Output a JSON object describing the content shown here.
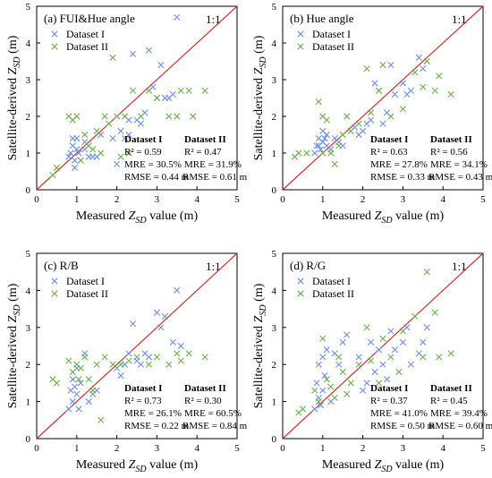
{
  "colors": {
    "dataset_1": "#6f8fe8",
    "dataset_2": "#6ab04c",
    "identity_line": "#d4302a",
    "frame": "#000000"
  },
  "chart_data": [
    {
      "type": "scatter",
      "title": "(a) FUI&Hue angle",
      "ratio_label": "1:1",
      "xlabel_prefix": "Measured ",
      "xlabel_sym": "Z",
      "xlabel_sub": "SD",
      "xlabel_suffix": " value (m)",
      "ylabel_prefix": "Satellite-derived ",
      "ylabel_sym": "Z",
      "ylabel_sub": "SD",
      "ylabel_suffix": " (m)",
      "xlim": [
        0,
        5
      ],
      "ylim": [
        0,
        5
      ],
      "xticks": [
        "0",
        "1",
        "2",
        "3",
        "4",
        "5"
      ],
      "yticks": [
        "0",
        "1",
        "2",
        "3",
        "4",
        "5"
      ],
      "legend": [
        "Dataset I",
        "Dataset II"
      ],
      "stats": [
        {
          "name": "Dataset I",
          "r2": "R² = 0.59",
          "mre": "MRE = 30.5%",
          "rmse": "RMSE = 0.44 m"
        },
        {
          "name": "Dataset II",
          "r2": "R² = 0.47",
          "mre": "MRE = 31.9%",
          "rmse": "RMSE = 0.61 m"
        }
      ],
      "series": [
        {
          "points": [
            [
              0.8,
              0.9
            ],
            [
              0.85,
              1.0
            ],
            [
              0.9,
              1.2
            ],
            [
              0.9,
              1.4
            ],
            [
              0.95,
              0.6
            ],
            [
              1.0,
              1.1
            ],
            [
              1.0,
              1.4
            ],
            [
              1.05,
              1.0
            ],
            [
              1.1,
              0.8
            ],
            [
              1.2,
              1.1
            ],
            [
              1.3,
              0.9
            ],
            [
              1.4,
              0.9
            ],
            [
              1.5,
              0.9
            ],
            [
              1.6,
              1.5
            ],
            [
              1.9,
              1.4
            ],
            [
              2.0,
              0.7
            ],
            [
              2.1,
              1.6
            ],
            [
              2.2,
              1.4
            ],
            [
              2.3,
              1.5
            ],
            [
              2.4,
              3.7
            ],
            [
              2.5,
              1.9
            ],
            [
              2.6,
              1.8
            ],
            [
              2.7,
              2.1
            ],
            [
              2.8,
              3.8
            ],
            [
              2.9,
              2.8
            ],
            [
              3.0,
              2.5
            ],
            [
              3.1,
              3.4
            ],
            [
              3.2,
              2.5
            ],
            [
              3.3,
              2.5
            ],
            [
              3.4,
              2.6
            ],
            [
              3.5,
              4.7
            ],
            [
              2.3,
              1.9
            ],
            [
              1.2,
              1.3
            ],
            [
              0.95,
              0.8
            ]
          ]
        },
        {
          "points": [
            [
              0.4,
              0.4
            ],
            [
              0.5,
              0.6
            ],
            [
              0.8,
              2.0
            ],
            [
              0.9,
              1.9
            ],
            [
              1.0,
              2.0
            ],
            [
              1.1,
              0.8
            ],
            [
              1.2,
              1.5
            ],
            [
              1.3,
              1.2
            ],
            [
              1.5,
              1.6
            ],
            [
              1.7,
              2.0
            ],
            [
              1.8,
              1.8
            ],
            [
              1.9,
              3.6
            ],
            [
              2.0,
              2.0
            ],
            [
              2.1,
              0.9
            ],
            [
              2.2,
              2.0
            ],
            [
              2.3,
              1.0
            ],
            [
              2.4,
              2.7
            ],
            [
              2.6,
              2.0
            ],
            [
              2.8,
              2.7
            ],
            [
              3.0,
              2.5
            ],
            [
              3.3,
              2.0
            ],
            [
              3.5,
              2.0
            ],
            [
              3.6,
              2.7
            ],
            [
              3.8,
              2.7
            ],
            [
              4.2,
              2.7
            ],
            [
              3.9,
              2.0
            ],
            [
              1.6,
              1.0
            ],
            [
              1.4,
              1.1
            ]
          ]
        }
      ]
    },
    {
      "type": "scatter",
      "title": "(b) Hue angle",
      "ratio_label": "1:1",
      "xlabel_prefix": "Measured ",
      "xlabel_sym": "Z",
      "xlabel_sub": "SD",
      "xlabel_suffix": " value (m)",
      "ylabel_prefix": "Satellite-derived ",
      "ylabel_sym": "Z",
      "ylabel_sub": "SD",
      "ylabel_suffix": " (m)",
      "xlim": [
        0,
        5
      ],
      "ylim": [
        0,
        5
      ],
      "xticks": [
        "0",
        "1",
        "2",
        "3",
        "4",
        "5"
      ],
      "yticks": [
        "0",
        "1",
        "2",
        "3",
        "4",
        "5"
      ],
      "legend": [
        "Dataset I",
        "Dataset II"
      ],
      "stats": [
        {
          "name": "Dataset I",
          "r2": "R² = 0.63",
          "mre": "MRE = 27.8%",
          "rmse": "RMSE = 0.33 m"
        },
        {
          "name": "Dataset II",
          "r2": "R² = 0.56",
          "mre": "MRE = 34.1%",
          "rmse": "RMSE = 0.43 m"
        }
      ],
      "series": [
        {
          "points": [
            [
              0.8,
              1.0
            ],
            [
              0.85,
              1.2
            ],
            [
              0.9,
              1.4
            ],
            [
              0.95,
              1.1
            ],
            [
              1.0,
              1.3
            ],
            [
              1.0,
              1.6
            ],
            [
              1.05,
              1.4
            ],
            [
              1.1,
              1.2
            ],
            [
              1.2,
              1.1
            ],
            [
              1.3,
              1.4
            ],
            [
              1.4,
              1.3
            ],
            [
              1.5,
              1.2
            ],
            [
              1.8,
              1.7
            ],
            [
              1.9,
              1.5
            ],
            [
              2.0,
              1.6
            ],
            [
              2.1,
              1.8
            ],
            [
              2.2,
              1.9
            ],
            [
              2.3,
              2.9
            ],
            [
              2.4,
              2.7
            ],
            [
              2.5,
              1.8
            ],
            [
              2.6,
              2.1
            ],
            [
              2.7,
              3.4
            ],
            [
              2.8,
              2.6
            ],
            [
              3.0,
              2.9
            ],
            [
              3.1,
              2.6
            ],
            [
              3.2,
              2.7
            ],
            [
              3.4,
              3.6
            ],
            [
              3.5,
              3.3
            ],
            [
              0.9,
              1.2
            ],
            [
              1.1,
              1.5
            ]
          ]
        },
        {
          "points": [
            [
              0.3,
              0.9
            ],
            [
              0.4,
              1.0
            ],
            [
              0.6,
              1.0
            ],
            [
              0.9,
              2.4
            ],
            [
              1.0,
              2.0
            ],
            [
              1.0,
              1.0
            ],
            [
              1.1,
              1.9
            ],
            [
              1.2,
              1.0
            ],
            [
              1.3,
              0.7
            ],
            [
              1.5,
              1.5
            ],
            [
              1.7,
              1.6
            ],
            [
              1.9,
              1.8
            ],
            [
              2.1,
              3.3
            ],
            [
              2.2,
              2.1
            ],
            [
              2.4,
              2.7
            ],
            [
              2.5,
              3.4
            ],
            [
              2.7,
              2.0
            ],
            [
              3.0,
              2.2
            ],
            [
              3.3,
              3.2
            ],
            [
              3.5,
              2.8
            ],
            [
              3.6,
              3.5
            ],
            [
              3.8,
              2.7
            ],
            [
              4.2,
              2.6
            ],
            [
              3.9,
              3.1
            ],
            [
              1.6,
              2.0
            ],
            [
              1.4,
              1.2
            ]
          ]
        }
      ]
    },
    {
      "type": "scatter",
      "title": "(c) R/B",
      "ratio_label": "1:1",
      "xlabel_prefix": "Measured ",
      "xlabel_sym": "Z",
      "xlabel_sub": "SD",
      "xlabel_suffix": " value (m)",
      "ylabel_prefix": "Satellite-derived ",
      "ylabel_sym": "Z",
      "ylabel_sub": "SD",
      "ylabel_suffix": " (m)",
      "xlim": [
        0,
        5
      ],
      "ylim": [
        0,
        5
      ],
      "xticks": [
        "0",
        "1",
        "2",
        "3",
        "4",
        "5"
      ],
      "yticks": [
        "0",
        "1",
        "2",
        "3",
        "4",
        "5"
      ],
      "legend": [
        "Dataset I",
        "Dataset II"
      ],
      "stats": [
        {
          "name": "Dataset I",
          "r2": "R² = 0.73",
          "mre": "MRE = 26.1%",
          "rmse": "RMSE = 0.22 m"
        },
        {
          "name": "Dataset II",
          "r2": "R² = 0.30",
          "mre": "MRE = 60.5%",
          "rmse": "RMSE = 0.84 m"
        }
      ],
      "series": [
        {
          "points": [
            [
              0.8,
              0.8
            ],
            [
              0.85,
              1.3
            ],
            [
              0.9,
              1.6
            ],
            [
              0.9,
              1.0
            ],
            [
              1.0,
              1.9
            ],
            [
              1.0,
              1.2
            ],
            [
              1.05,
              0.8
            ],
            [
              1.1,
              1.5
            ],
            [
              1.2,
              2.3
            ],
            [
              1.3,
              1.0
            ],
            [
              1.4,
              1.2
            ],
            [
              1.5,
              1.3
            ],
            [
              2.0,
              1.9
            ],
            [
              2.1,
              1.7
            ],
            [
              2.2,
              2.0
            ],
            [
              2.3,
              2.3
            ],
            [
              2.4,
              3.1
            ],
            [
              2.5,
              2.1
            ],
            [
              2.6,
              2.0
            ],
            [
              2.7,
              2.3
            ],
            [
              2.8,
              2.2
            ],
            [
              3.0,
              3.4
            ],
            [
              3.1,
              3.0
            ],
            [
              3.2,
              3.3
            ],
            [
              3.4,
              2.6
            ],
            [
              3.5,
              4.0
            ],
            [
              3.6,
              2.5
            ],
            [
              0.95,
              1.4
            ]
          ]
        },
        {
          "points": [
            [
              0.4,
              1.6
            ],
            [
              0.5,
              1.5
            ],
            [
              0.8,
              2.1
            ],
            [
              0.9,
              1.8
            ],
            [
              1.0,
              2.0
            ],
            [
              1.05,
              1.6
            ],
            [
              1.1,
              1.9
            ],
            [
              1.2,
              2.2
            ],
            [
              1.3,
              1.6
            ],
            [
              1.5,
              2.0
            ],
            [
              1.7,
              2.2
            ],
            [
              1.9,
              2.0
            ],
            [
              2.1,
              2.0
            ],
            [
              2.3,
              2.1
            ],
            [
              2.5,
              2.2
            ],
            [
              2.8,
              2.0
            ],
            [
              3.0,
              2.2
            ],
            [
              3.3,
              2.0
            ],
            [
              3.5,
              2.3
            ],
            [
              3.6,
              2.1
            ],
            [
              3.8,
              2.3
            ],
            [
              4.2,
              2.2
            ],
            [
              1.6,
              0.5
            ],
            [
              1.4,
              1.3
            ]
          ]
        }
      ]
    },
    {
      "type": "scatter",
      "title": "(d) R/G",
      "ratio_label": "1:1",
      "xlabel_prefix": "Measured ",
      "xlabel_sym": "Z",
      "xlabel_sub": "SD",
      "xlabel_suffix": " value (m)",
      "ylabel_prefix": "Satellite-derived ",
      "ylabel_sym": "Z",
      "ylabel_sub": "SD",
      "ylabel_suffix": " (m)",
      "xlim": [
        0,
        5
      ],
      "ylim": [
        0,
        5
      ],
      "xticks": [
        "0",
        "1",
        "2",
        "3",
        "4",
        "5"
      ],
      "yticks": [
        "0",
        "1",
        "2",
        "3",
        "4",
        "5"
      ],
      "legend": [
        "Dataset I",
        "Dataset II"
      ],
      "stats": [
        {
          "name": "Dataset I",
          "r2": "R² = 0.37",
          "mre": "MRE = 41.0%",
          "rmse": "RMSE = 0.50 m"
        },
        {
          "name": "Dataset II",
          "r2": "R² = 0.45",
          "mre": "MRE = 39.4%",
          "rmse": "RMSE = 0.60 m"
        }
      ],
      "series": [
        {
          "points": [
            [
              0.8,
              0.8
            ],
            [
              0.85,
              1.5
            ],
            [
              0.9,
              2.0
            ],
            [
              0.9,
              1.1
            ],
            [
              1.0,
              2.2
            ],
            [
              1.0,
              1.3
            ],
            [
              1.05,
              1.7
            ],
            [
              1.1,
              2.4
            ],
            [
              1.2,
              1.0
            ],
            [
              1.3,
              2.3
            ],
            [
              1.4,
              2.0
            ],
            [
              1.5,
              2.6
            ],
            [
              1.6,
              2.8
            ],
            [
              1.9,
              2.2
            ],
            [
              2.0,
              1.3
            ],
            [
              2.1,
              1.5
            ],
            [
              2.2,
              2.6
            ],
            [
              2.3,
              1.8
            ],
            [
              2.4,
              2.4
            ],
            [
              2.5,
              2.0
            ],
            [
              2.6,
              1.6
            ],
            [
              2.7,
              2.9
            ],
            [
              2.8,
              2.4
            ],
            [
              3.0,
              2.6
            ],
            [
              3.1,
              3.0
            ],
            [
              3.2,
              2.0
            ],
            [
              3.4,
              2.3
            ],
            [
              3.5,
              2.6
            ],
            [
              3.6,
              3.0
            ],
            [
              0.95,
              0.9
            ]
          ]
        },
        {
          "points": [
            [
              0.4,
              0.7
            ],
            [
              0.5,
              0.8
            ],
            [
              0.8,
              1.3
            ],
            [
              0.9,
              1.0
            ],
            [
              1.0,
              2.7
            ],
            [
              1.1,
              1.6
            ],
            [
              1.2,
              1.4
            ],
            [
              1.3,
              1.1
            ],
            [
              1.5,
              1.8
            ],
            [
              1.7,
              1.5
            ],
            [
              1.9,
              2.0
            ],
            [
              2.1,
              3.0
            ],
            [
              2.2,
              2.1
            ],
            [
              2.4,
              1.5
            ],
            [
              2.5,
              2.7
            ],
            [
              2.7,
              2.2
            ],
            [
              2.9,
              1.8
            ],
            [
              3.0,
              2.9
            ],
            [
              3.3,
              3.3
            ],
            [
              3.5,
              2.2
            ],
            [
              3.6,
              4.5
            ],
            [
              3.8,
              3.4
            ],
            [
              4.2,
              2.3
            ],
            [
              3.9,
              2.2
            ],
            [
              1.6,
              1.2
            ],
            [
              1.4,
              2.2
            ]
          ]
        }
      ]
    }
  ]
}
